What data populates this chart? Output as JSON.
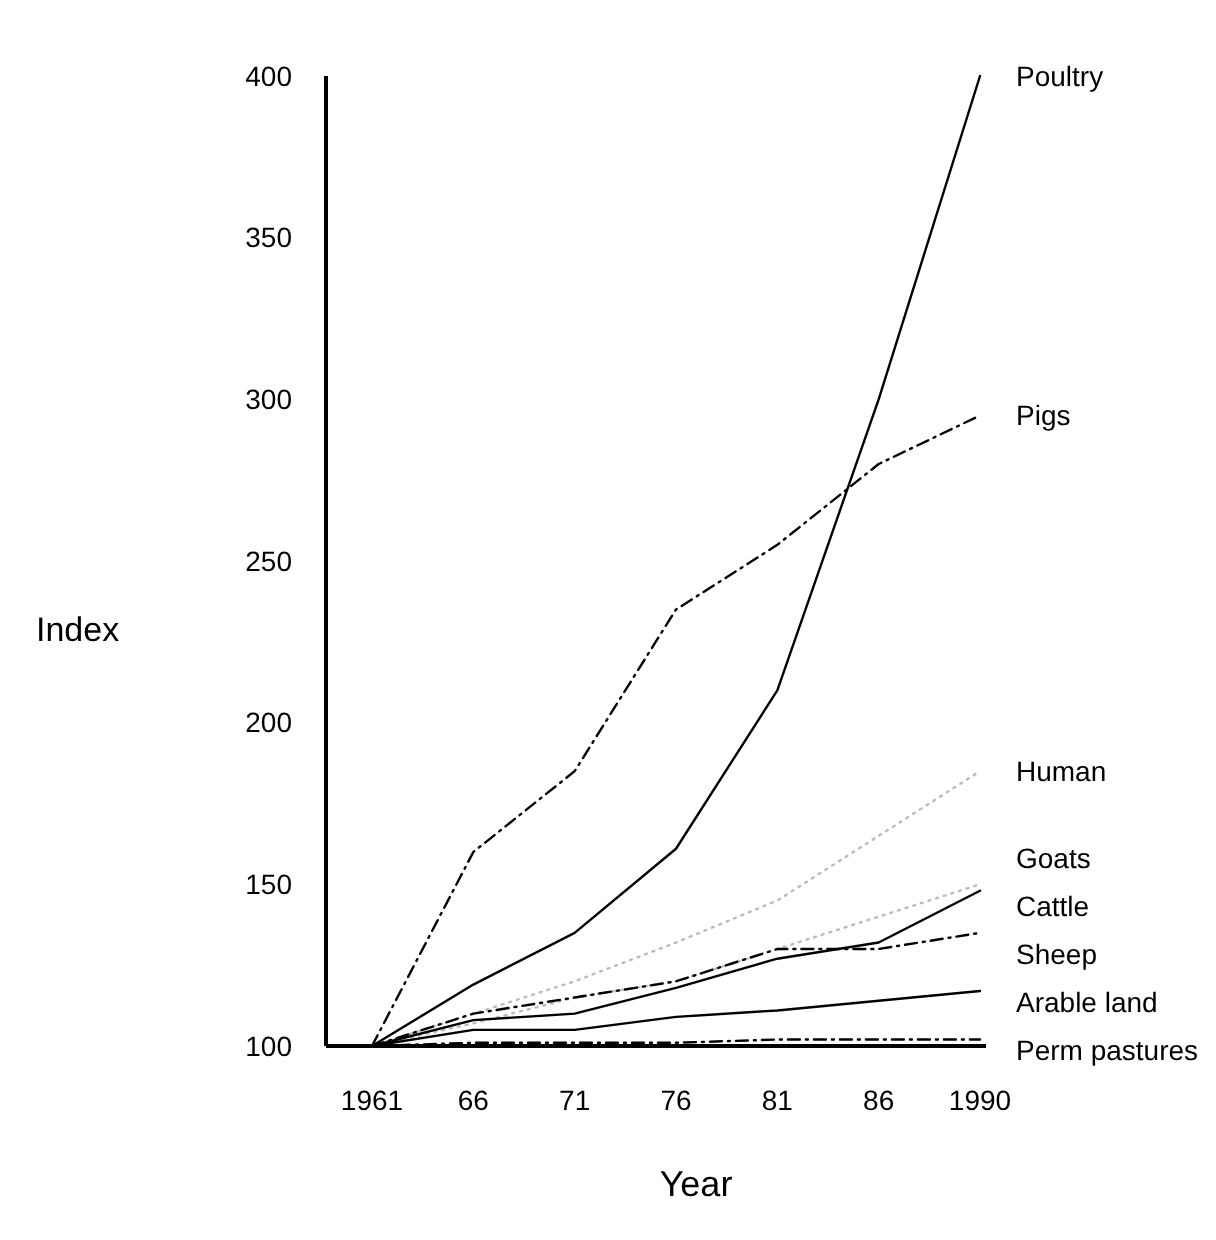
{
  "chart_data": {
    "type": "line",
    "xlabel": "Year",
    "ylabel": "Index",
    "categories": [
      "1961",
      "66",
      "71",
      "76",
      "81",
      "86",
      "1990"
    ],
    "ylim": [
      100,
      400
    ],
    "yticks": [
      100,
      150,
      200,
      250,
      300,
      350,
      400
    ],
    "marker": "none",
    "series": [
      {
        "name": "Poultry",
        "color": "#000000",
        "line_style": "solid",
        "values": [
          100,
          119,
          135,
          161,
          210,
          300,
          400
        ]
      },
      {
        "name": "Pigs",
        "color": "#000000",
        "line_style": "dashed",
        "values": [
          100,
          160,
          185,
          235,
          255,
          280,
          295
        ]
      },
      {
        "name": "Human",
        "color": "#bbbbbb",
        "line_style": "dotted",
        "values": [
          100,
          110,
          120,
          132,
          145,
          165,
          185
        ]
      },
      {
        "name": "Goats",
        "color": "#bbbbbb",
        "line_style": "dotted",
        "values": [
          100,
          107,
          115,
          120,
          130,
          140,
          150
        ]
      },
      {
        "name": "Cattle",
        "color": "#000000",
        "line_style": "solid",
        "values": [
          100,
          108,
          110,
          118,
          127,
          132,
          148
        ]
      },
      {
        "name": "Sheep",
        "color": "#000000",
        "line_style": "dashed",
        "values": [
          100,
          110,
          115,
          120,
          130,
          130,
          135
        ]
      },
      {
        "name": "Arable land",
        "color": "#000000",
        "line_style": "solid",
        "values": [
          100,
          105,
          105,
          109,
          111,
          114,
          117
        ]
      },
      {
        "name": "Perm pastures",
        "color": "#000000",
        "line_style": "dashed",
        "values": [
          100,
          101,
          101,
          101,
          102,
          102,
          102
        ]
      }
    ]
  }
}
